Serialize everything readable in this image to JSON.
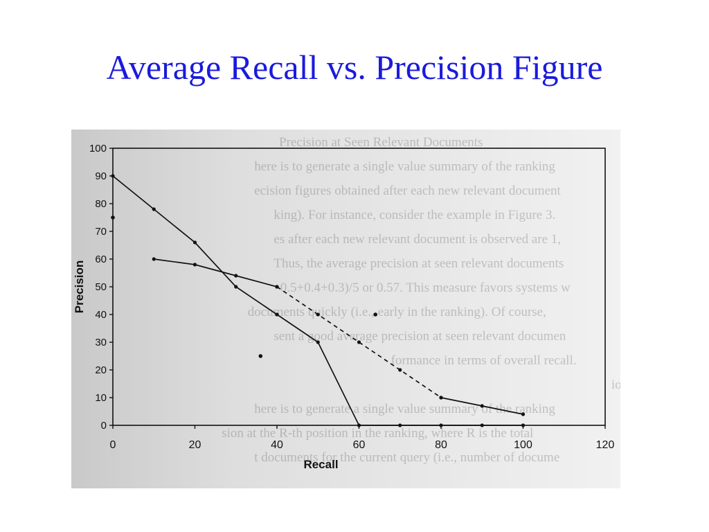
{
  "slide": {
    "title": "Average Recall vs. Precision Figure"
  },
  "colors": {
    "title": "#1a1adc",
    "series": "#111111"
  },
  "chart_data": {
    "type": "line",
    "title": "",
    "xlabel": "Recall",
    "ylabel": "Precision",
    "xlim": [
      0,
      120
    ],
    "ylim": [
      0,
      100
    ],
    "x_ticks": [
      "0",
      "20",
      "40",
      "60",
      "80",
      "100",
      "120"
    ],
    "y_ticks": [
      "0",
      "10",
      "20",
      "30",
      "40",
      "50",
      "60",
      "70",
      "80",
      "90",
      "100"
    ],
    "grid": false,
    "legend": "none",
    "series": [
      {
        "style": "solid",
        "points": [
          [
            0,
            90
          ],
          [
            10,
            78
          ],
          [
            20,
            66
          ],
          [
            30,
            50
          ],
          [
            40,
            40
          ],
          [
            50,
            30
          ],
          [
            60,
            0
          ],
          [
            70,
            0
          ],
          [
            80,
            0
          ],
          [
            90,
            0
          ],
          [
            100,
            0
          ]
        ]
      },
      {
        "style": "solid",
        "points": [
          [
            10,
            60
          ],
          [
            20,
            58
          ],
          [
            30,
            54
          ],
          [
            40,
            50
          ]
        ]
      },
      {
        "style": "dashed",
        "points": [
          [
            40,
            50
          ],
          [
            50,
            40
          ],
          [
            60,
            30
          ],
          [
            70,
            20
          ],
          [
            80,
            10
          ]
        ]
      },
      {
        "style": "solid",
        "points": [
          [
            80,
            10
          ],
          [
            90,
            7
          ],
          [
            100,
            4
          ]
        ]
      }
    ],
    "stray_points": [
      [
        0,
        75
      ],
      [
        64,
        40
      ],
      [
        36,
        25
      ]
    ]
  },
  "background_text": [
    "Precision at Seen Relevant Documents",
    "here is to generate a single value summary of the ranking",
    "ecision figures obtained after each new relevant document",
    "king). For instance, consider the example in Figure 3.",
    "es after each new relevant document is observed are 1,",
    "Thus, the average precision at seen relevant documents",
    "0.5+0.4+0.3)/5 or 0.57. This measure favors systems w",
    "documents quickly (i.e., early in the ranking). Of course,",
    "sent a good average precision at seen relevant documen",
    "formance in terms of overall recall.",
    "ion",
    "here is to generate a single value summary of the ranking",
    "sion at the R-th position in the ranking, where R is the total",
    "t documents for the current query (i.e., number of docume"
  ]
}
